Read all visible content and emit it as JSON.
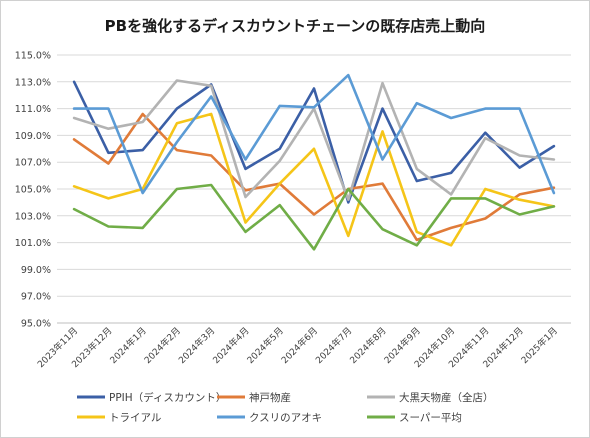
{
  "chart_data": {
    "type": "line",
    "title": "PBを強化するディスカウントチェーンの既存店売上動向",
    "xlabel": "",
    "ylabel": "",
    "ylim": [
      95.0,
      115.0
    ],
    "ytick_step": 2.0,
    "ytick_format": "0.0%",
    "grid": true,
    "legend_position": "bottom",
    "categories": [
      "2023年11月",
      "2023年12月",
      "2024年1月",
      "2024年2月",
      "2024年3月",
      "2024年4月",
      "2024年5月",
      "2024年6月",
      "2024年7月",
      "2024年8月",
      "2024年9月",
      "2024年10月",
      "2024年11月",
      "2024年12月",
      "2025年1月"
    ],
    "series": [
      {
        "name": "PPIH（ディスカウント）",
        "color": "#3b5fa6",
        "values": [
          113.0,
          107.7,
          107.9,
          111.0,
          112.8,
          106.5,
          108.0,
          112.5,
          104.0,
          111.0,
          105.6,
          106.2,
          109.2,
          106.6,
          108.2
        ]
      },
      {
        "name": "神戸物産",
        "color": "#e07b39",
        "values": [
          108.7,
          106.9,
          110.6,
          107.9,
          107.5,
          104.9,
          105.4,
          103.1,
          105.0,
          105.4,
          101.2,
          102.1,
          102.8,
          104.6,
          105.1
        ]
      },
      {
        "name": "大黒天物産（全店）",
        "color": "#b3b3b3",
        "values": [
          110.3,
          109.5,
          110.0,
          113.1,
          112.7,
          104.4,
          107.1,
          111.0,
          104.2,
          112.9,
          106.5,
          104.6,
          108.8,
          107.5,
          107.2
        ]
      },
      {
        "name": "トライアル",
        "color": "#f5c518",
        "values": [
          105.2,
          104.3,
          105.0,
          109.9,
          110.6,
          102.5,
          105.4,
          108.0,
          101.5,
          109.3,
          101.8,
          100.8,
          105.0,
          104.2,
          103.7
        ]
      },
      {
        "name": "クスリのアオキ",
        "color": "#5b9bd5",
        "values": [
          111.0,
          111.0,
          104.7,
          108.5,
          111.9,
          107.2,
          111.2,
          111.1,
          113.5,
          107.2,
          111.4,
          110.3,
          111.0,
          111.0,
          104.7
        ]
      },
      {
        "name": "スーパー平均",
        "color": "#70ad47",
        "values": [
          103.5,
          102.2,
          102.1,
          105.0,
          105.3,
          101.8,
          103.8,
          100.5,
          105.0,
          102.0,
          100.8,
          104.3,
          104.3,
          103.1,
          103.7
        ]
      }
    ]
  }
}
